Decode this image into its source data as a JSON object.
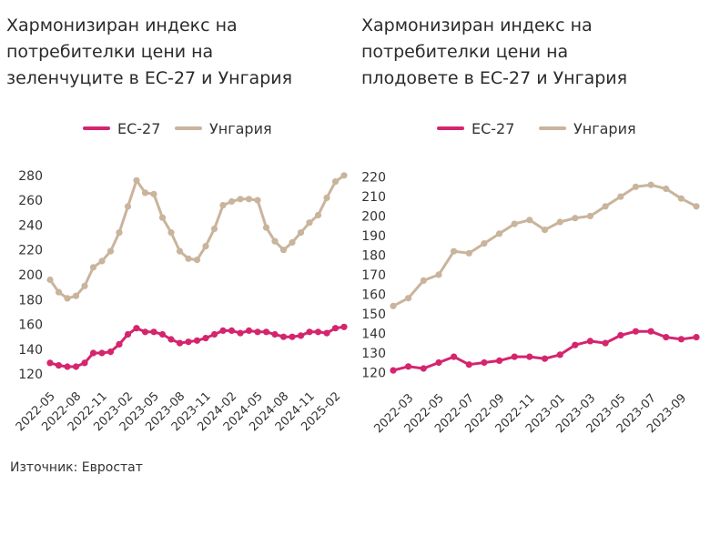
{
  "colors": {
    "eu": "#d4256e",
    "hungary": "#c9b49c"
  },
  "source": "Източник: Евростат",
  "chart_data": [
    {
      "type": "line",
      "title": "Хармонизиран индекс на\nпотребителки цени на\nзеленчуците в ЕС-27 и Унгария",
      "legend": [
        "ЕС-27",
        "Унгария"
      ],
      "ylim": [
        115,
        285
      ],
      "yticks": [
        120,
        140,
        160,
        180,
        200,
        220,
        240,
        260,
        280
      ],
      "x": [
        "2022-05",
        "2022-06",
        "2022-07",
        "2022-08",
        "2022-09",
        "2022-10",
        "2022-11",
        "2022-12",
        "2023-01",
        "2023-02",
        "2023-03",
        "2023-04",
        "2023-05",
        "2023-06",
        "2023-07",
        "2023-08",
        "2023-09",
        "2023-10",
        "2023-11",
        "2023-12",
        "2024-01",
        "2024-02",
        "2024-03",
        "2024-04",
        "2024-05",
        "2024-06",
        "2024-07",
        "2024-08",
        "2024-09",
        "2024-10",
        "2024-11",
        "2024-12",
        "2025-01",
        "2025-02",
        "2025-03"
      ],
      "xtick_labels": [
        "2022-05",
        "2022-08",
        "2022-11",
        "2023-02",
        "2023-05",
        "2023-08",
        "2023-11",
        "2024-02",
        "2024-05",
        "2024-08",
        "2024-11",
        "2025-02"
      ],
      "series": [
        {
          "name": "ЕС-27",
          "values": [
            129,
            127,
            126,
            126,
            129,
            137,
            137,
            138,
            144,
            152,
            157,
            154,
            154,
            152,
            148,
            145,
            146,
            147,
            149,
            152,
            155,
            155,
            153,
            155,
            154,
            154,
            152,
            150,
            150,
            151,
            154,
            154,
            153,
            157,
            158
          ]
        },
        {
          "name": "Унгария",
          "values": [
            196,
            186,
            181,
            183,
            191,
            206,
            211,
            219,
            234,
            255,
            276,
            266,
            265,
            246,
            234,
            219,
            213,
            212,
            223,
            237,
            256,
            259,
            261,
            261,
            260,
            238,
            227,
            220,
            226,
            234,
            242,
            248,
            262,
            275,
            280
          ]
        }
      ]
    },
    {
      "type": "line",
      "title": "Хармонизиран индекс на\nпотребителки цени на\nплодовете в ЕС-27 и Унгария",
      "legend": [
        "ЕС-27",
        "Унгария"
      ],
      "ylim": [
        115,
        224
      ],
      "yticks": [
        120,
        130,
        140,
        150,
        160,
        170,
        180,
        190,
        200,
        210,
        220
      ],
      "x": [
        "2022-02",
        "2022-03",
        "2022-04",
        "2022-05",
        "2022-06",
        "2022-07",
        "2022-08",
        "2022-09",
        "2022-10",
        "2022-11",
        "2022-12",
        "2023-01",
        "2023-02",
        "2023-03",
        "2023-04",
        "2023-05",
        "2023-06",
        "2023-07",
        "2023-08",
        "2023-09",
        "2023-10"
      ],
      "xtick_labels": [
        "2022-03",
        "2022-05",
        "2022-07",
        "2022-09",
        "2022-11",
        "2023-01",
        "2023-03",
        "2023-05",
        "2023-07",
        "2023-09"
      ],
      "series": [
        {
          "name": "ЕС-27",
          "values": [
            121,
            123,
            122,
            125,
            128,
            124,
            125,
            126,
            128,
            128,
            127,
            129,
            134,
            136,
            135,
            139,
            141,
            141,
            138,
            137,
            138
          ]
        },
        {
          "name": "Унгария",
          "values": [
            154,
            158,
            167,
            170,
            182,
            181,
            186,
            191,
            196,
            198,
            193,
            197,
            199,
            200,
            205,
            210,
            215,
            216,
            214,
            209,
            205
          ]
        }
      ]
    }
  ]
}
